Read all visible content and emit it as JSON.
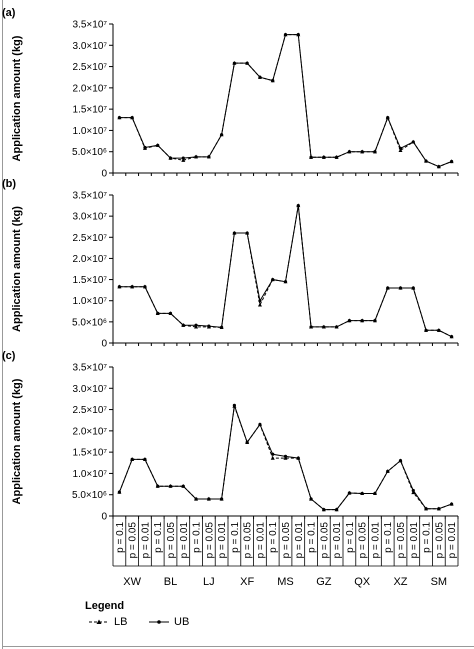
{
  "chart_data": {
    "type": "line",
    "categories": [
      "XW",
      "BL",
      "LJ",
      "XF",
      "MS",
      "GZ",
      "QX",
      "XZ",
      "SM"
    ],
    "levels": [
      "p = 0.1",
      "p = 0.05",
      "p = 0.01"
    ],
    "ylabel": "Application amount (kg)",
    "yticks": [
      "0",
      "5.0×10⁶",
      "1.0×10⁷",
      "1.5×10⁷",
      "2.0×10⁷",
      "2.5×10⁷",
      "3.0×10⁷",
      "3.5×10⁷"
    ],
    "ylim": [
      0,
      35000000
    ],
    "legend": {
      "title": "Legend",
      "lb": "LB",
      "ub": "UB"
    },
    "panels": [
      {
        "label": "(a)",
        "series": [
          {
            "name": "LB",
            "values": [
              13000000,
              13000000,
              5800000,
              6500000,
              3500000,
              3000000,
              3800000,
              3800000,
              9000000,
              25800000,
              25800000,
              22500000,
              21700000,
              32500000,
              32500000,
              3700000,
              3700000,
              3700000,
              5000000,
              5000000,
              5000000,
              13000000,
              5300000,
              7300000,
              2800000,
              1500000,
              2700000
            ]
          },
          {
            "name": "UB",
            "values": [
              13000000,
              13000000,
              6000000,
              6500000,
              3500000,
              3500000,
              3800000,
              3800000,
              9000000,
              25800000,
              25800000,
              22500000,
              21700000,
              32500000,
              32500000,
              3700000,
              3700000,
              3700000,
              5000000,
              5000000,
              5000000,
              13000000,
              5800000,
              7300000,
              2800000,
              1500000,
              2700000
            ]
          }
        ]
      },
      {
        "label": "(b)",
        "series": [
          {
            "name": "LB",
            "values": [
              13300000,
              13300000,
              13300000,
              7000000,
              7000000,
              4200000,
              3800000,
              3800000,
              3700000,
              26000000,
              26000000,
              9000000,
              15000000,
              14500000,
              32500000,
              3800000,
              3800000,
              3800000,
              5300000,
              5300000,
              5300000,
              13000000,
              13000000,
              13000000,
              3000000,
              3000000,
              1500000
            ]
          },
          {
            "name": "UB",
            "values": [
              13300000,
              13300000,
              13300000,
              7000000,
              7000000,
              4200000,
              4200000,
              4000000,
              3700000,
              26000000,
              26000000,
              10000000,
              15000000,
              14500000,
              32500000,
              3800000,
              3800000,
              3800000,
              5300000,
              5300000,
              5300000,
              13000000,
              13000000,
              13000000,
              3000000,
              3000000,
              1500000
            ]
          }
        ]
      },
      {
        "label": "(c)",
        "series": [
          {
            "name": "LB",
            "values": [
              5600000,
              13300000,
              13300000,
              7000000,
              7000000,
              7000000,
              4000000,
              4000000,
              4000000,
              25800000,
              17300000,
              21500000,
              13600000,
              13600000,
              13600000,
              4000000,
              1500000,
              1500000,
              5400000,
              5300000,
              5300000,
              10500000,
              13000000,
              5500000,
              1700000,
              1700000,
              2800000
            ]
          },
          {
            "name": "UB",
            "values": [
              5600000,
              13300000,
              13300000,
              7000000,
              7000000,
              7000000,
              4000000,
              4000000,
              4000000,
              26000000,
              17300000,
              21500000,
              14500000,
              14000000,
              13600000,
              4000000,
              1500000,
              1500000,
              5400000,
              5300000,
              5300000,
              10500000,
              13000000,
              6000000,
              1700000,
              1700000,
              2800000
            ]
          }
        ]
      }
    ]
  }
}
